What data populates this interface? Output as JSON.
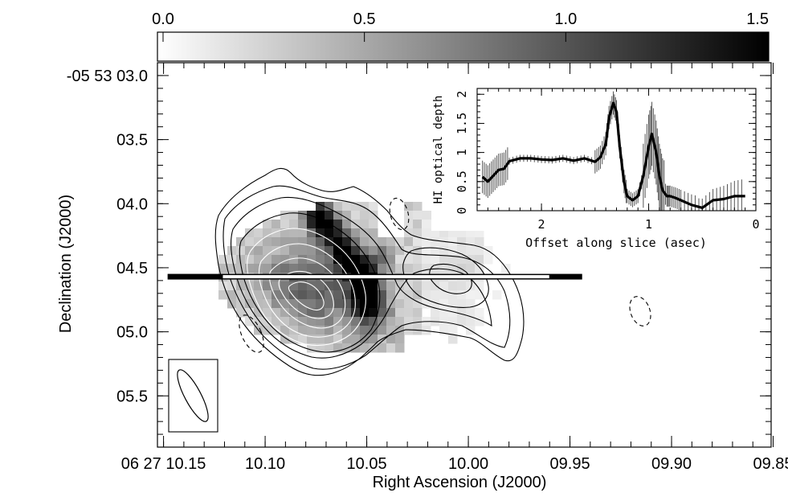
{
  "chart_data": [
    {
      "type": "heatmap",
      "colorbar": {
        "ticks": [
          "0.0",
          "0.5",
          "1.0",
          "1.5"
        ],
        "range": [
          0.0,
          1.5
        ],
        "colormap": "white-to-black greyscale"
      },
      "xlabel": "Right Ascension (J2000)",
      "ylabel": "Declination (J2000)",
      "x_ticks": [
        "06 27 10.15",
        "10.10",
        "10.05",
        "10.00",
        "09.95",
        "09.90",
        "09.85"
      ],
      "y_ticks": [
        "-05 53 03.0",
        "03.5",
        "04.0",
        "04.5",
        "05.0",
        "05.5"
      ],
      "xlim_sec": [
        10.153,
        9.851
      ],
      "ylim_arcsec": [
        2.9,
        5.9
      ],
      "slice": {
        "dec_arcsec": 4.57,
        "ra_start_sec": 10.148,
        "ra_end_sec": 9.944,
        "highlight_ra_sec": [
          10.121,
          9.96
        ]
      },
      "contours": "black and white contour levels, dashed negative contours",
      "beam": {
        "shape": "ellipse",
        "position": "bottom-left"
      }
    },
    {
      "type": "line",
      "title": "",
      "xlabel": "Offset along slice (asec)",
      "ylabel": "HI optical depth",
      "xlim": [
        2.6,
        0.0
      ],
      "ylim": [
        0.0,
        2.1
      ],
      "x_ticks": [
        "2",
        "1",
        "0"
      ],
      "y_ticks": [
        "0",
        "0.5",
        "1",
        "1.5",
        "2"
      ],
      "x": [
        2.55,
        2.5,
        2.45,
        2.4,
        2.35,
        2.3,
        2.2,
        2.1,
        2.0,
        1.9,
        1.8,
        1.7,
        1.6,
        1.5,
        1.45,
        1.4,
        1.37,
        1.33,
        1.3,
        1.27,
        1.23,
        1.2,
        1.15,
        1.1,
        1.05,
        1.0,
        0.97,
        0.93,
        0.9,
        0.87,
        0.83,
        0.8,
        0.75,
        0.7,
        0.6,
        0.5,
        0.4,
        0.3,
        0.2,
        0.1
      ],
      "y": [
        0.58,
        0.5,
        0.6,
        0.7,
        0.72,
        0.85,
        0.9,
        0.9,
        0.88,
        0.87,
        0.9,
        0.86,
        0.9,
        0.84,
        0.92,
        1.15,
        1.6,
        1.85,
        1.7,
        1.1,
        0.5,
        0.25,
        0.18,
        0.25,
        0.6,
        1.1,
        1.32,
        1.0,
        0.6,
        0.35,
        0.25,
        0.25,
        0.22,
        0.18,
        0.1,
        0.05,
        0.18,
        0.2,
        0.25,
        0.25
      ],
      "error_bars": true
    }
  ]
}
